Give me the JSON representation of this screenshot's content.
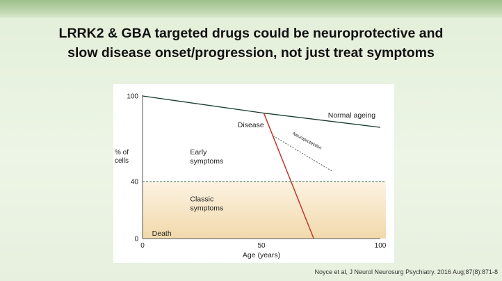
{
  "slide": {
    "title_line1": "LRRK2 & GBA targeted drugs could be neuroprotective and",
    "title_line2": "slow disease onset/progression, not just treat symptoms",
    "citation": "Noyce et al, J Neurol Neurosurg Psychiatry. 2016 Aug;87(8):871-8"
  },
  "chart_data": {
    "type": "line",
    "title": "",
    "xlabel": "Age (years)",
    "ylabel_line1": "% of",
    "ylabel_line2": "cells",
    "xlim": [
      0,
      100
    ],
    "ylim": [
      0,
      100
    ],
    "x_ticks": [
      "0",
      "50",
      "100"
    ],
    "y_ticks": [
      "0",
      "40",
      "100"
    ],
    "threshold": 40,
    "series": [
      {
        "name": "Normal ageing",
        "color": "#1a3c2b",
        "style": "solid",
        "points": [
          [
            0,
            100
          ],
          [
            51,
            88
          ],
          [
            100,
            78
          ]
        ]
      },
      {
        "name": "Disease",
        "color": "#c0352f",
        "style": "solid",
        "points": [
          [
            51,
            88
          ],
          [
            72,
            0
          ]
        ]
      },
      {
        "name": "Neuroprotection",
        "color": "#444444",
        "style": "dashed",
        "points": [
          [
            55,
            72
          ],
          [
            80,
            47
          ]
        ]
      }
    ],
    "regions": [
      {
        "label_line1": "Early",
        "label_line2": "symptoms",
        "x": 20,
        "y": 59
      },
      {
        "label_line1": "Classic",
        "label_line2": "symptoms",
        "x": 20,
        "y": 26
      },
      {
        "label_line1": "Death",
        "label_line2": "",
        "x": 4,
        "y": 2
      }
    ],
    "annotations": {
      "normal_ageing": {
        "text": "Normal ageing",
        "x": 78,
        "y": 85
      },
      "disease": {
        "text": "Disease",
        "x": 40,
        "y": 78
      },
      "neuroprotection": {
        "text": "Neuroprotection",
        "x": 63,
        "y": 73
      }
    },
    "colors": {
      "threshold_line": "#2d6b4f",
      "shade_top": "#fdf3e2",
      "shade_bottom": "#f1d9ab"
    }
  }
}
